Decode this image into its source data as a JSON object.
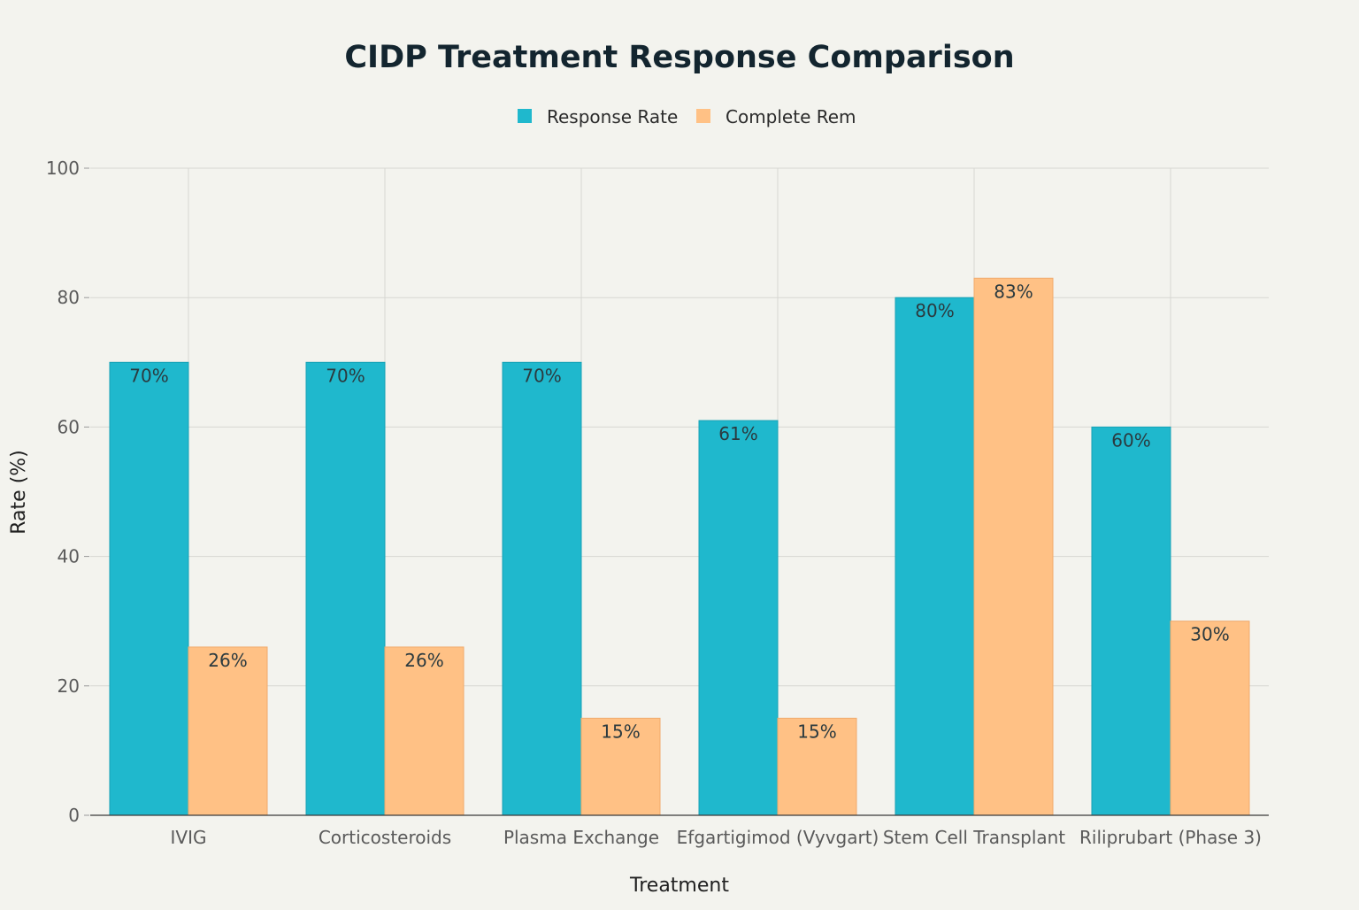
{
  "chart_data": {
    "type": "bar",
    "title": "CIDP Treatment Response Comparison",
    "xlabel": "Treatment",
    "ylabel": "Rate (%)",
    "ylim": [
      0,
      100
    ],
    "yticks": [
      0,
      20,
      40,
      60,
      80,
      100
    ],
    "grid": true,
    "legend_position": "top-center",
    "categories": [
      "IVIG",
      "Corticosteroids",
      "Plasma Exchange",
      "Efgartigimod (Vyvgart)",
      "Stem Cell Transplant",
      "Riliprubart (Phase 3)"
    ],
    "series": [
      {
        "name": "Response Rate",
        "color": "#1fb8cd",
        "values": [
          70,
          70,
          70,
          61,
          80,
          60
        ],
        "labels": [
          "70%",
          "70%",
          "70%",
          "61%",
          "80%",
          "60%"
        ]
      },
      {
        "name": "Complete Rem",
        "color": "#ffc185",
        "values": [
          26,
          26,
          15,
          15,
          83,
          30
        ],
        "labels": [
          "26%",
          "26%",
          "15%",
          "15%",
          "83%",
          "30%"
        ]
      }
    ]
  }
}
